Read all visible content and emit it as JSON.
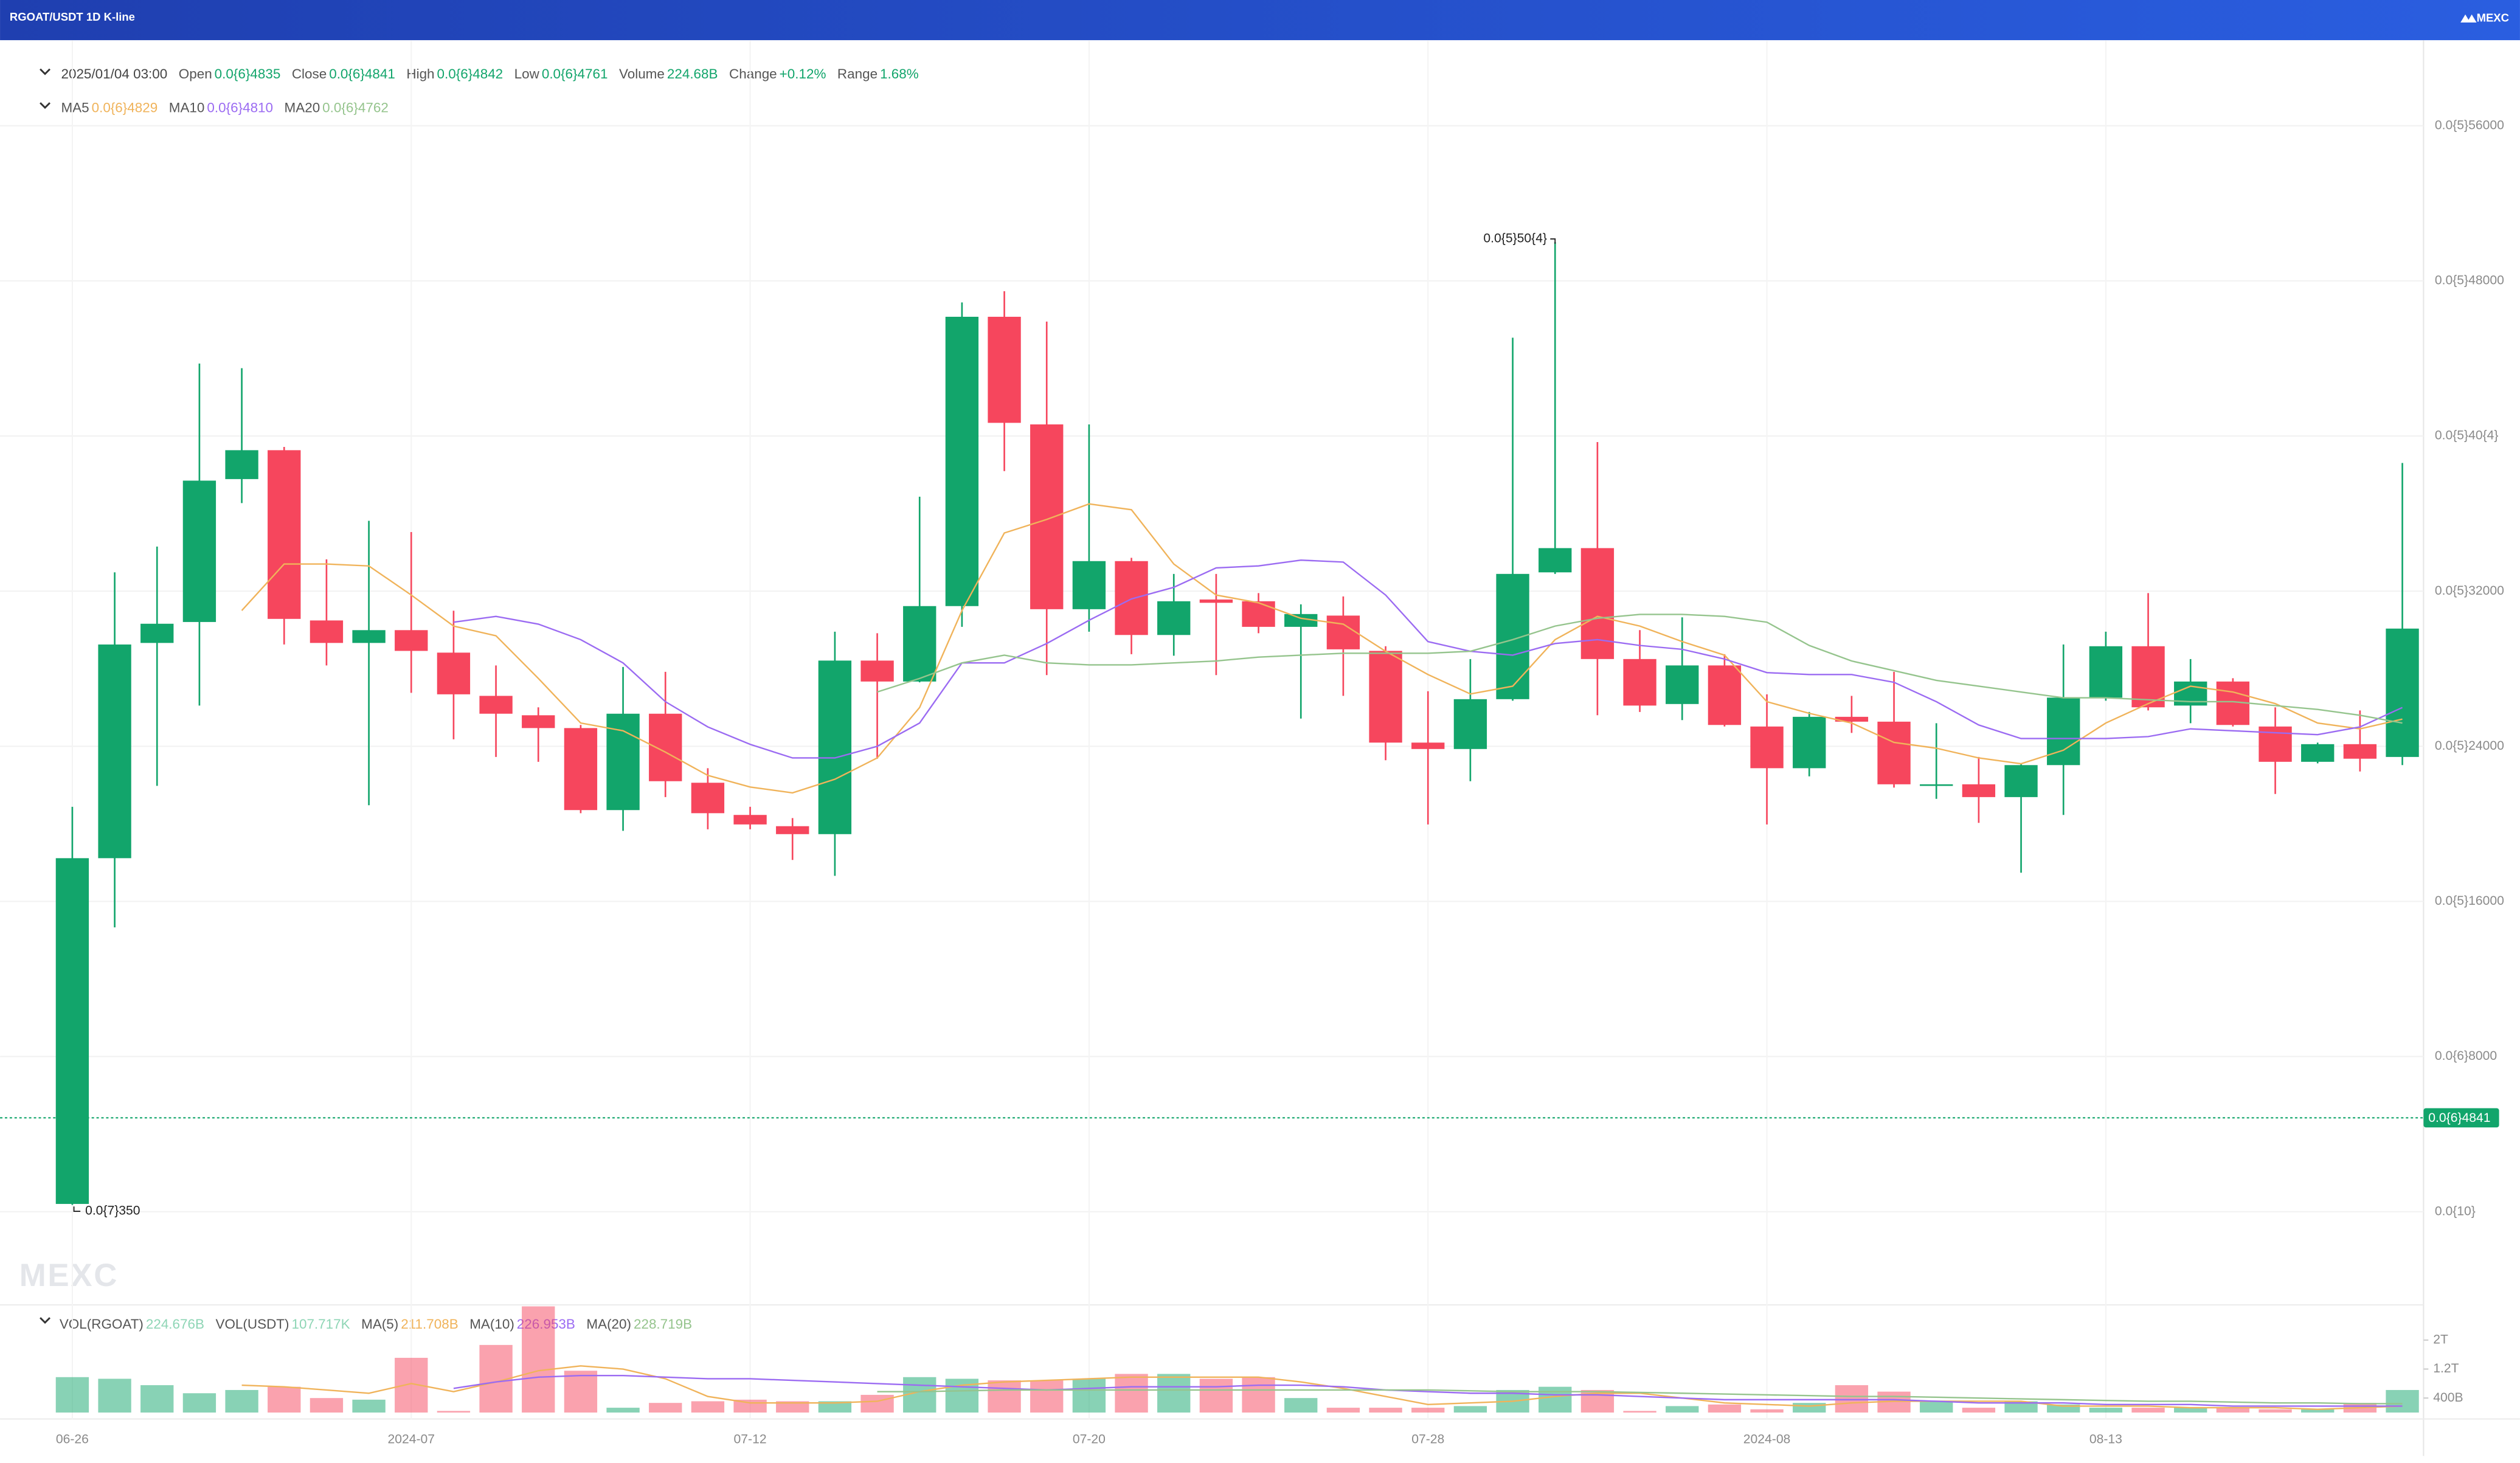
{
  "chart_data": {
    "type": "candlestick",
    "title": "RGOAT/USDT 1D K-line",
    "brand": "MEXC",
    "date": "2025/01/04 03:00",
    "info": [
      {
        "label": "Open",
        "value": "0.0{6}4835"
      },
      {
        "label": "Close",
        "value": "0.0{6}4841"
      },
      {
        "label": "High",
        "value": "0.0{6}4842"
      },
      {
        "label": "Low",
        "value": "0.0{6}4761"
      },
      {
        "label": "Volume",
        "value": "224.68B"
      },
      {
        "label": "Change",
        "value": "+0.12%"
      },
      {
        "label": "Range",
        "value": "1.68%"
      }
    ],
    "up_color": "#12a56b",
    "down_color": "#f6465d",
    "categories": [
      "06-26",
      null,
      null,
      null,
      null,
      null,
      null,
      null,
      "2024-07",
      null,
      null,
      null,
      null,
      null,
      null,
      null,
      "07-12",
      null,
      null,
      null,
      null,
      null,
      null,
      null,
      "07-20",
      null,
      null,
      null,
      null,
      null,
      null,
      null,
      "07-28",
      null,
      null,
      null,
      null,
      null,
      null,
      null,
      "2024-08",
      null,
      null,
      null,
      null,
      null,
      null,
      null,
      "08-13",
      null,
      null,
      null,
      null,
      null,
      null,
      null
    ],
    "open": [
      4e-08,
      1.823e-06,
      2.933e-06,
      3.041e-06,
      3.778e-06,
      3.927e-06,
      3.049e-06,
      2.933e-06,
      2.999e-06,
      2.883e-06,
      2.66e-06,
      2.56e-06,
      2.494e-06,
      2.071e-06,
      2.568e-06,
      2.212e-06,
      2.046e-06,
      1.988e-06,
      1.947e-06,
      2.842e-06,
      2.734e-06,
      3.123e-06,
      4.615e-06,
      4.06e-06,
      3.107e-06,
      3.355e-06,
      2.974e-06,
      3.157e-06,
      3.148e-06,
      3.016e-06,
      3.074e-06,
      2.892e-06,
      2.419e-06,
      2.386e-06,
      2.643e-06,
      3.297e-06,
      3.422e-06,
      2.85e-06,
      2.618e-06,
      2.817e-06,
      2.502e-06,
      2.287e-06,
      2.552e-06,
      2.527e-06,
      2.196e-06,
      2.204e-06,
      2.138e-06,
      2.303e-06,
      2.651e-06,
      2.916e-06,
      2.61e-06,
      2.734e-06,
      2.502e-06,
      2.32e-06,
      2.411e-06,
      2.345e-06
    ],
    "close": [
      1.823e-06,
      2.925e-06,
      3.032e-06,
      3.77e-06,
      3.927e-06,
      3.057e-06,
      2.933e-06,
      2.999e-06,
      2.892e-06,
      2.668e-06,
      2.568e-06,
      2.494e-06,
      2.071e-06,
      2.568e-06,
      2.22e-06,
      2.055e-06,
      1.997e-06,
      1.947e-06,
      2.842e-06,
      2.734e-06,
      3.123e-06,
      4.615e-06,
      4.068e-06,
      3.107e-06,
      3.355e-06,
      2.974e-06,
      3.148e-06,
      3.14e-06,
      3.016e-06,
      3.082e-06,
      2.9e-06,
      2.419e-06,
      2.386e-06,
      2.643e-06,
      3.289e-06,
      3.422e-06,
      2.85e-06,
      2.61e-06,
      2.817e-06,
      2.51e-06,
      2.287e-06,
      2.552e-06,
      2.527e-06,
      2.204e-06,
      2.204e-06,
      2.138e-06,
      2.303e-06,
      2.651e-06,
      2.916e-06,
      2.601e-06,
      2.734e-06,
      2.51e-06,
      2.32e-06,
      2.411e-06,
      2.336e-06,
      3.007e-06
    ],
    "high": [
      2.088e-06,
      3.297e-06,
      3.43e-06,
      4.374e-06,
      4.35e-06,
      3.944e-06,
      3.364e-06,
      3.563e-06,
      3.505e-06,
      3.099e-06,
      2.817e-06,
      2.601e-06,
      2.51e-06,
      2.809e-06,
      2.784e-06,
      2.287e-06,
      2.088e-06,
      2.03e-06,
      2.991e-06,
      2.983e-06,
      3.687e-06,
      4.689e-06,
      4.747e-06,
      4.59e-06,
      4.06e-06,
      3.372e-06,
      3.289e-06,
      3.289e-06,
      3.19e-06,
      3.132e-06,
      3.173e-06,
      2.916e-06,
      2.684e-06,
      2.85e-06,
      4.507e-06,
      5e-06,
      3.969e-06,
      2.999e-06,
      3.065e-06,
      2.875e-06,
      2.668e-06,
      2.577e-06,
      2.66e-06,
      2.784e-06,
      2.519e-06,
      2.345e-06,
      2.31e-06,
      2.925e-06,
      2.991e-06,
      3.19e-06,
      2.85e-06,
      2.751e-06,
      2.601e-06,
      2.419e-06,
      2.585e-06,
      3.861e-06
    ],
    "low": [
      3.5e-08,
      1.466e-06,
      2.196e-06,
      2.61e-06,
      3.654e-06,
      2.925e-06,
      2.817e-06,
      2.096e-06,
      2.676e-06,
      2.436e-06,
      2.345e-06,
      2.32e-06,
      2.055e-06,
      1.964e-06,
      2.138e-06,
      1.972e-06,
      1.972e-06,
      1.814e-06,
      1.732e-06,
      2.336e-06,
      2.73e-06,
      3.016e-06,
      3.819e-06,
      2.767e-06,
      2.991e-06,
      2.875e-06,
      2.867e-06,
      2.767e-06,
      2.983e-06,
      2.543e-06,
      2.66e-06,
      2.328e-06,
      1.997e-06,
      2.22e-06,
      2.635e-06,
      3.289e-06,
      2.56e-06,
      2.577e-06,
      2.535e-06,
      2.502e-06,
      1.997e-06,
      2.245e-06,
      2.469e-06,
      2.187e-06,
      2.129e-06,
      2.005e-06,
      1.748e-06,
      2.046e-06,
      2.635e-06,
      2.585e-06,
      2.519e-06,
      2.502e-06,
      2.154e-06,
      2.312e-06,
      2.27e-06,
      2.303e-06
    ],
    "series": [
      {
        "name": "MA5",
        "legend_value": "0.0{6}4829",
        "color": "#f0b35a",
        "values": [
          null,
          null,
          null,
          null,
          3.1e-06,
          3.34e-06,
          3.34e-06,
          3.33e-06,
          3.18e-06,
          3.02e-06,
          2.97e-06,
          2.75e-06,
          2.52e-06,
          2.48e-06,
          2.37e-06,
          2.25e-06,
          2.19e-06,
          2.16e-06,
          2.23e-06,
          2.34e-06,
          2.6e-06,
          3.1e-06,
          3.5e-06,
          3.57e-06,
          3.65e-06,
          3.62e-06,
          3.34e-06,
          3.18e-06,
          3.14e-06,
          3.06e-06,
          3.03e-06,
          2.89e-06,
          2.77e-06,
          2.67e-06,
          2.71e-06,
          2.95e-06,
          3.07e-06,
          3.02e-06,
          2.94e-06,
          2.87e-06,
          2.63e-06,
          2.57e-06,
          2.52e-06,
          2.42e-06,
          2.39e-06,
          2.34e-06,
          2.31e-06,
          2.38e-06,
          2.52e-06,
          2.62e-06,
          2.71e-06,
          2.68e-06,
          2.62e-06,
          2.52e-06,
          2.49e-06,
          2.54e-06
        ]
      },
      {
        "name": "MA10",
        "legend_value": "0.0{6}4810",
        "color": "#9b6bf2",
        "values": [
          null,
          null,
          null,
          null,
          null,
          null,
          null,
          null,
          null,
          3.04e-06,
          3.07e-06,
          3.03e-06,
          2.95e-06,
          2.83e-06,
          2.63e-06,
          2.5e-06,
          2.41e-06,
          2.34e-06,
          2.34e-06,
          2.4e-06,
          2.52e-06,
          2.83e-06,
          2.83e-06,
          2.93e-06,
          3.05e-06,
          3.16e-06,
          3.22e-06,
          3.32e-06,
          3.33e-06,
          3.36e-06,
          3.35e-06,
          3.18e-06,
          2.94e-06,
          2.89e-06,
          2.87e-06,
          2.93e-06,
          2.95e-06,
          2.92e-06,
          2.9e-06,
          2.85e-06,
          2.78e-06,
          2.77e-06,
          2.77e-06,
          2.73e-06,
          2.63e-06,
          2.51e-06,
          2.44e-06,
          2.44e-06,
          2.44e-06,
          2.45e-06,
          2.49e-06,
          2.48e-06,
          2.47e-06,
          2.46e-06,
          2.5e-06,
          2.6e-06
        ]
      },
      {
        "name": "MA20",
        "legend_value": "0.0{6}4762",
        "color": "#95c48d",
        "values": [
          null,
          null,
          null,
          null,
          null,
          null,
          null,
          null,
          null,
          null,
          null,
          null,
          null,
          null,
          null,
          null,
          null,
          null,
          null,
          2.68e-06,
          2.75e-06,
          2.83e-06,
          2.87e-06,
          2.83e-06,
          2.82e-06,
          2.82e-06,
          2.83e-06,
          2.84e-06,
          2.86e-06,
          2.87e-06,
          2.88e-06,
          2.88e-06,
          2.88e-06,
          2.89e-06,
          2.95e-06,
          3.02e-06,
          3.06e-06,
          3.08e-06,
          3.08e-06,
          3.07e-06,
          3.04e-06,
          2.92e-06,
          2.84e-06,
          2.79e-06,
          2.74e-06,
          2.71e-06,
          2.68e-06,
          2.65e-06,
          2.65e-06,
          2.64e-06,
          2.63e-06,
          2.63e-06,
          2.61e-06,
          2.59e-06,
          2.56e-06,
          2.52e-06
        ]
      }
    ],
    "ylim": [
      -4.64e-07,
      6e-06
    ],
    "yticks": [
      {
        "value": 5.6e-06,
        "label": "0.0{5}56000"
      },
      {
        "value": 4.8e-06,
        "label": "0.0{5}48000"
      },
      {
        "value": 4e-06,
        "label": "0.0{5}40{4}"
      },
      {
        "value": 3.2e-06,
        "label": "0.0{5}32000"
      },
      {
        "value": 2.4e-06,
        "label": "0.0{5}24000"
      },
      {
        "value": 1.6e-06,
        "label": "0.0{5}16000"
      },
      {
        "value": 8e-07,
        "label": "0.0{6}8000"
      },
      {
        "value": 0,
        "label": "0.0{10}"
      }
    ],
    "grid": true,
    "current_price": {
      "value": 4.841e-07,
      "label": "0.0{6}4841"
    },
    "high_label": "0.0{5}50{4}",
    "low_label": "0.0{7}350",
    "volume": {
      "type": "bar",
      "info": [
        {
          "label": "VOL(RGOAT)",
          "value": "224.676B"
        },
        {
          "label": "VOL(USDT)",
          "value": "107.717K"
        }
      ],
      "values": [
        977000000000.0,
        932000000000.0,
        755000000000.0,
        533000000000.0,
        622000000000.0,
        711000000000.0,
        400000000000.0,
        355000000000.0,
        1510000000000.0,
        44000000000.0,
        1865000000000.0,
        2930000000000.0,
        1154000000000.0,
        133000000000.0,
        266000000000.0,
        311000000000.0,
        355000000000.0,
        311000000000.0,
        311000000000.0,
        488000000000.0,
        977000000000.0,
        932000000000.0,
        888000000000.0,
        888000000000.0,
        932000000000.0,
        1066000000000.0,
        1066000000000.0,
        932000000000.0,
        977000000000.0,
        400000000000.0,
        133000000000.0,
        133000000000.0,
        133000000000.0,
        178000000000.0,
        622000000000.0,
        711000000000.0,
        622000000000.0,
        44000000000.0,
        178000000000.0,
        222000000000.0,
        89000000000.0,
        266000000000.0,
        755000000000.0,
        577000000000.0,
        311000000000.0,
        133000000000.0,
        311000000000.0,
        222000000000.0,
        133000000000.0,
        133000000000.0,
        133000000000.0,
        133000000000.0,
        89000000000.0,
        89000000000.0,
        266000000000.0,
        622000000000.0
      ],
      "series": [
        {
          "name": "MA(5)",
          "legend_value": "211.708B",
          "color": "#f0b35a",
          "values": [
            null,
            null,
            null,
            null,
            755000000000.0,
            710000000000.0,
            622000000000.0,
            533000000000.0,
            799000000000.0,
            577000000000.0,
            844000000000.0,
            1154000000000.0,
            1288000000000.0,
            1199000000000.0,
            932000000000.0,
            444000000000.0,
            266000000000.0,
            266000000000.0,
            266000000000.0,
            311000000000.0,
            577000000000.0,
            755000000000.0,
            844000000000.0,
            888000000000.0,
            932000000000.0,
            977000000000.0,
            977000000000.0,
            977000000000.0,
            977000000000.0,
            844000000000.0,
            666000000000.0,
            444000000000.0,
            222000000000.0,
            266000000000.0,
            311000000000.0,
            444000000000.0,
            533000000000.0,
            533000000000.0,
            400000000000.0,
            266000000000.0,
            222000000000.0,
            178000000000.0,
            266000000000.0,
            311000000000.0,
            311000000000.0,
            311000000000.0,
            311000000000.0,
            178000000000.0,
            178000000000.0,
            178000000000.0,
            133000000000.0,
            133000000000.0,
            133000000000.0,
            89000000000.0,
            133000000000.0,
            178000000000.0
          ]
        },
        {
          "name": "MA(10)",
          "legend_value": "226.953B",
          "color": "#9b6bf2",
          "values": [
            null,
            null,
            null,
            null,
            null,
            null,
            null,
            null,
            null,
            666000000000.0,
            844000000000.0,
            977000000000.0,
            1021000000000.0,
            1021000000000.0,
            977000000000.0,
            932000000000.0,
            932000000000.0,
            888000000000.0,
            844000000000.0,
            799000000000.0,
            755000000000.0,
            710000000000.0,
            666000000000.0,
            622000000000.0,
            666000000000.0,
            710000000000.0,
            710000000000.0,
            710000000000.0,
            755000000000.0,
            755000000000.0,
            710000000000.0,
            622000000000.0,
            577000000000.0,
            533000000000.0,
            533000000000.0,
            488000000000.0,
            488000000000.0,
            444000000000.0,
            400000000000.0,
            355000000000.0,
            355000000000.0,
            355000000000.0,
            355000000000.0,
            355000000000.0,
            311000000000.0,
            266000000000.0,
            266000000000.0,
            266000000000.0,
            222000000000.0,
            222000000000.0,
            222000000000.0,
            178000000000.0,
            178000000000.0,
            178000000000.0,
            178000000000.0,
            178000000000.0
          ]
        },
        {
          "name": "MA(20)",
          "legend_value": "228.719B",
          "color": "#95c48d",
          "values": [
            null,
            null,
            null,
            null,
            null,
            null,
            null,
            null,
            null,
            null,
            null,
            null,
            null,
            null,
            null,
            null,
            null,
            null,
            null,
            577000000000.0,
            577000000000.0,
            599000000000.0,
            622000000000.0,
            622000000000.0,
            622000000000.0,
            622000000000.0,
            622000000000.0,
            622000000000.0,
            622000000000.0,
            622000000000.0,
            622000000000.0,
            622000000000.0,
            622000000000.0,
            599000000000.0,
            577000000000.0,
            577000000000.0,
            577000000000.0,
            555000000000.0,
            533000000000.0,
            511000000000.0,
            488000000000.0,
            466000000000.0,
            444000000000.0,
            444000000000.0,
            422000000000.0,
            400000000000.0,
            377000000000.0,
            355000000000.0,
            333000000000.0,
            311000000000.0,
            311000000000.0,
            289000000000.0,
            266000000000.0,
            266000000000.0,
            244000000000.0,
            244000000000.0
          ]
        }
      ],
      "ylim": [
        0,
        3060000000000.0
      ],
      "yticks": [
        {
          "value": 400000000000.0,
          "label": "400B"
        },
        {
          "value": 1200000000000.0,
          "label": "1.2T"
        },
        {
          "value": 2000000000000.0,
          "label": "2T"
        }
      ]
    }
  }
}
